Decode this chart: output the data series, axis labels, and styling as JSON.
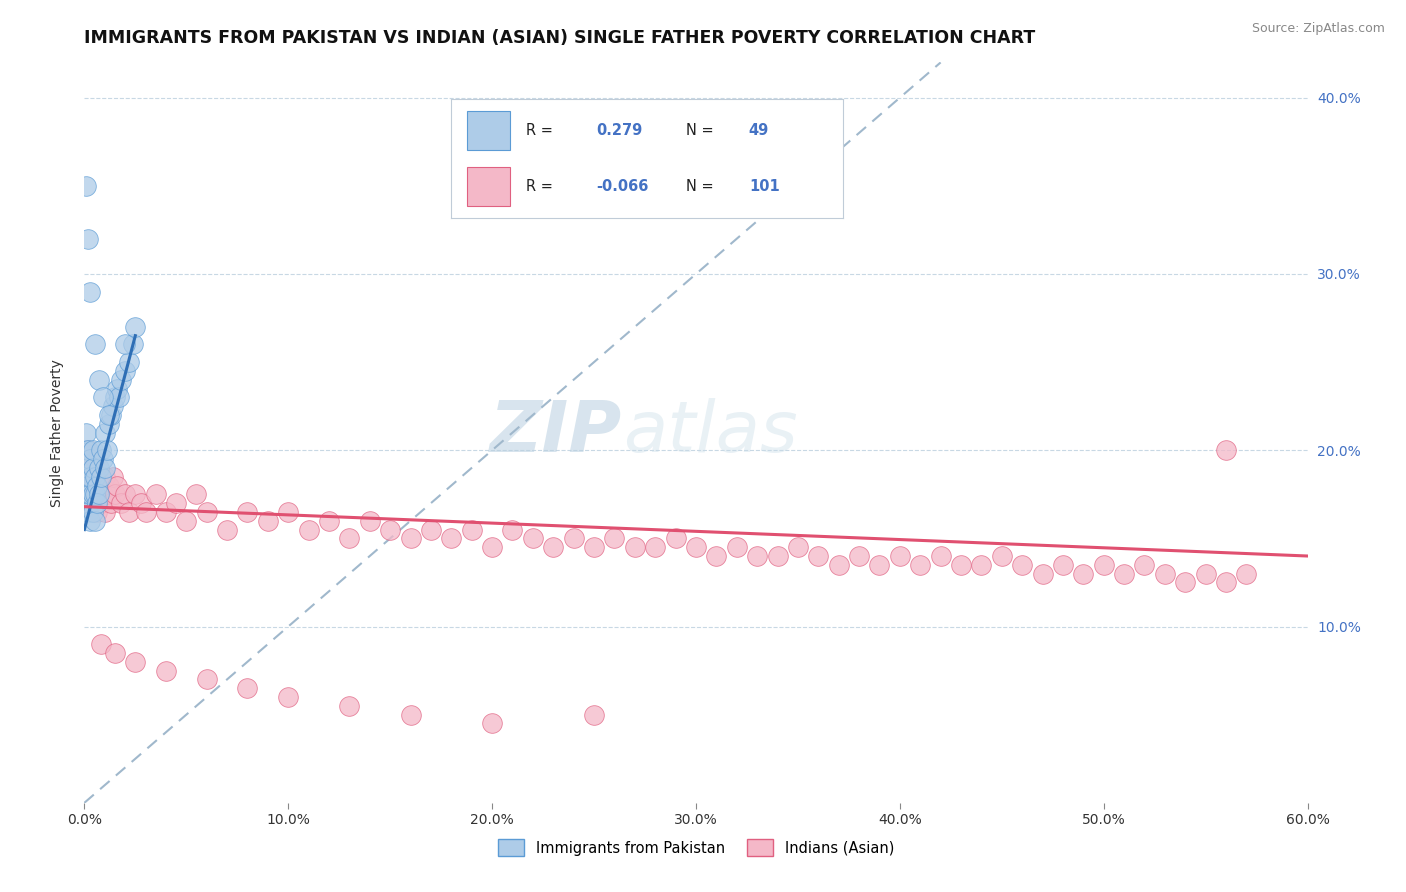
{
  "title": "IMMIGRANTS FROM PAKISTAN VS INDIAN (ASIAN) SINGLE FATHER POVERTY CORRELATION CHART",
  "source": "Source: ZipAtlas.com",
  "ylabel": "Single Father Poverty",
  "xlim": [
    0.0,
    0.6
  ],
  "ylim": [
    0.0,
    0.42
  ],
  "xtick_labels": [
    "0.0%",
    "",
    "10.0%",
    "",
    "20.0%",
    "",
    "30.0%",
    "",
    "40.0%",
    "",
    "50.0%",
    "",
    "60.0%"
  ],
  "xtick_vals": [
    0.0,
    0.05,
    0.1,
    0.15,
    0.2,
    0.25,
    0.3,
    0.35,
    0.4,
    0.45,
    0.5,
    0.55,
    0.6
  ],
  "ytick_labels_right": [
    "10.0%",
    "20.0%",
    "30.0%",
    "40.0%"
  ],
  "ytick_vals": [
    0.1,
    0.2,
    0.3,
    0.4
  ],
  "r_pakistan": 0.279,
  "n_pakistan": 49,
  "r_indian": -0.066,
  "n_indian": 101,
  "blue_color": "#aecce8",
  "blue_edge": "#5b9bd5",
  "pink_color": "#f4b8c8",
  "pink_edge": "#e06080",
  "blue_line_color": "#2e6eb5",
  "pink_line_color": "#e05070",
  "ref_line_color": "#a0b8cc",
  "background_color": "#ffffff",
  "watermark_zip": "ZIP",
  "watermark_atlas": "atlas",
  "title_fontsize": 12.5,
  "label_fontsize": 10,
  "pakistan_x": [
    0.001,
    0.001,
    0.001,
    0.001,
    0.002,
    0.002,
    0.002,
    0.002,
    0.002,
    0.003,
    0.003,
    0.003,
    0.003,
    0.004,
    0.004,
    0.004,
    0.004,
    0.005,
    0.005,
    0.005,
    0.006,
    0.006,
    0.007,
    0.007,
    0.008,
    0.008,
    0.009,
    0.01,
    0.01,
    0.011,
    0.012,
    0.013,
    0.014,
    0.015,
    0.016,
    0.017,
    0.018,
    0.02,
    0.022,
    0.024,
    0.001,
    0.002,
    0.003,
    0.005,
    0.007,
    0.009,
    0.012,
    0.02,
    0.025
  ],
  "pakistan_y": [
    0.185,
    0.2,
    0.21,
    0.175,
    0.19,
    0.18,
    0.17,
    0.2,
    0.165,
    0.195,
    0.175,
    0.185,
    0.16,
    0.19,
    0.175,
    0.165,
    0.2,
    0.185,
    0.175,
    0.16,
    0.18,
    0.17,
    0.19,
    0.175,
    0.2,
    0.185,
    0.195,
    0.21,
    0.19,
    0.2,
    0.215,
    0.22,
    0.225,
    0.23,
    0.235,
    0.23,
    0.24,
    0.245,
    0.25,
    0.26,
    0.35,
    0.32,
    0.29,
    0.26,
    0.24,
    0.23,
    0.22,
    0.26,
    0.27
  ],
  "indian_x": [
    0.001,
    0.001,
    0.002,
    0.002,
    0.002,
    0.003,
    0.003,
    0.004,
    0.004,
    0.005,
    0.005,
    0.006,
    0.006,
    0.007,
    0.008,
    0.008,
    0.009,
    0.01,
    0.01,
    0.011,
    0.012,
    0.013,
    0.014,
    0.015,
    0.016,
    0.018,
    0.02,
    0.022,
    0.025,
    0.028,
    0.03,
    0.035,
    0.04,
    0.045,
    0.05,
    0.055,
    0.06,
    0.07,
    0.08,
    0.09,
    0.1,
    0.11,
    0.12,
    0.13,
    0.14,
    0.15,
    0.16,
    0.17,
    0.18,
    0.19,
    0.2,
    0.21,
    0.22,
    0.23,
    0.24,
    0.25,
    0.26,
    0.27,
    0.28,
    0.29,
    0.3,
    0.31,
    0.32,
    0.33,
    0.34,
    0.35,
    0.36,
    0.37,
    0.38,
    0.39,
    0.4,
    0.41,
    0.42,
    0.43,
    0.44,
    0.45,
    0.46,
    0.47,
    0.48,
    0.49,
    0.5,
    0.51,
    0.52,
    0.53,
    0.54,
    0.55,
    0.56,
    0.57,
    0.003,
    0.008,
    0.015,
    0.025,
    0.04,
    0.06,
    0.08,
    0.1,
    0.13,
    0.16,
    0.2,
    0.25,
    0.56
  ],
  "indian_y": [
    0.185,
    0.175,
    0.19,
    0.17,
    0.2,
    0.18,
    0.195,
    0.175,
    0.185,
    0.17,
    0.195,
    0.175,
    0.165,
    0.18,
    0.17,
    0.185,
    0.175,
    0.165,
    0.185,
    0.175,
    0.18,
    0.17,
    0.185,
    0.175,
    0.18,
    0.17,
    0.175,
    0.165,
    0.175,
    0.17,
    0.165,
    0.175,
    0.165,
    0.17,
    0.16,
    0.175,
    0.165,
    0.155,
    0.165,
    0.16,
    0.165,
    0.155,
    0.16,
    0.15,
    0.16,
    0.155,
    0.15,
    0.155,
    0.15,
    0.155,
    0.145,
    0.155,
    0.15,
    0.145,
    0.15,
    0.145,
    0.15,
    0.145,
    0.145,
    0.15,
    0.145,
    0.14,
    0.145,
    0.14,
    0.14,
    0.145,
    0.14,
    0.135,
    0.14,
    0.135,
    0.14,
    0.135,
    0.14,
    0.135,
    0.135,
    0.14,
    0.135,
    0.13,
    0.135,
    0.13,
    0.135,
    0.13,
    0.135,
    0.13,
    0.125,
    0.13,
    0.125,
    0.13,
    0.175,
    0.09,
    0.085,
    0.08,
    0.075,
    0.07,
    0.065,
    0.06,
    0.055,
    0.05,
    0.045,
    0.05,
    0.2
  ],
  "pak_trend_x": [
    0.0,
    0.025
  ],
  "pak_trend_y": [
    0.155,
    0.265
  ],
  "ind_trend_x": [
    0.0,
    0.6
  ],
  "ind_trend_y": [
    0.168,
    0.14
  ]
}
